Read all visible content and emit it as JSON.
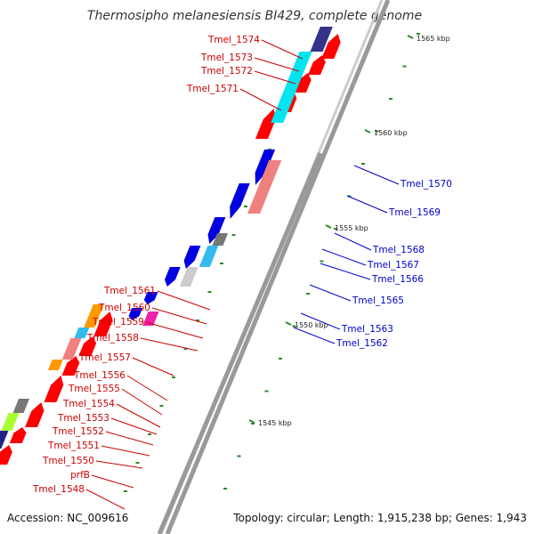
{
  "title": "Thermosipho melanesiensis BI429, complete genome",
  "accession": "Accession: NC_009616",
  "topology": "Topology: circular; Length: 1,915,238 bp; Genes: 1,943",
  "colors": {
    "forward_label": "#cc0000",
    "reverse_label": "#0000cc",
    "backbone": "#999999",
    "backbone_light": "#cccccc",
    "tick": "#2a8a2a",
    "forward_gene": "#ff0000",
    "reverse_gene": "#0000e0"
  },
  "kbp_markers": [
    {
      "id": "1565",
      "label": "1565 kbp"
    },
    {
      "id": "1560",
      "label": "1560 kbp"
    },
    {
      "id": "1555",
      "label": "1555 kbp"
    },
    {
      "id": "1550",
      "label": "1550 kbp"
    },
    {
      "id": "1545",
      "label": "1545 kbp"
    }
  ],
  "forward_genes": [
    {
      "label": "Tmel_1574"
    },
    {
      "label": "Tmel_1573"
    },
    {
      "label": "Tmel_1572"
    },
    {
      "label": "Tmel_1571"
    },
    {
      "label": "Tmel_1561"
    },
    {
      "label": "Tmel_1560"
    },
    {
      "label": "Tmel_1559"
    },
    {
      "label": "Tmel_1558"
    },
    {
      "label": "Tmel_1557"
    },
    {
      "label": "Tmel_1556"
    },
    {
      "label": "Tmel_1555"
    },
    {
      "label": "Tmel_1554"
    },
    {
      "label": "Tmel_1553"
    },
    {
      "label": "Tmel_1552"
    },
    {
      "label": "Tmel_1551"
    },
    {
      "label": "Tmel_1550"
    },
    {
      "label": "prfB"
    },
    {
      "label": "Tmel_1548"
    }
  ],
  "reverse_genes": [
    {
      "label": "Tmel_1570"
    },
    {
      "label": "Tmel_1569"
    },
    {
      "label": "Tmel_1568"
    },
    {
      "label": "Tmel_1567"
    },
    {
      "label": "Tmel_1566"
    },
    {
      "label": "Tmel_1565"
    },
    {
      "label": "Tmel_1563"
    },
    {
      "label": "Tmel_1562"
    }
  ]
}
